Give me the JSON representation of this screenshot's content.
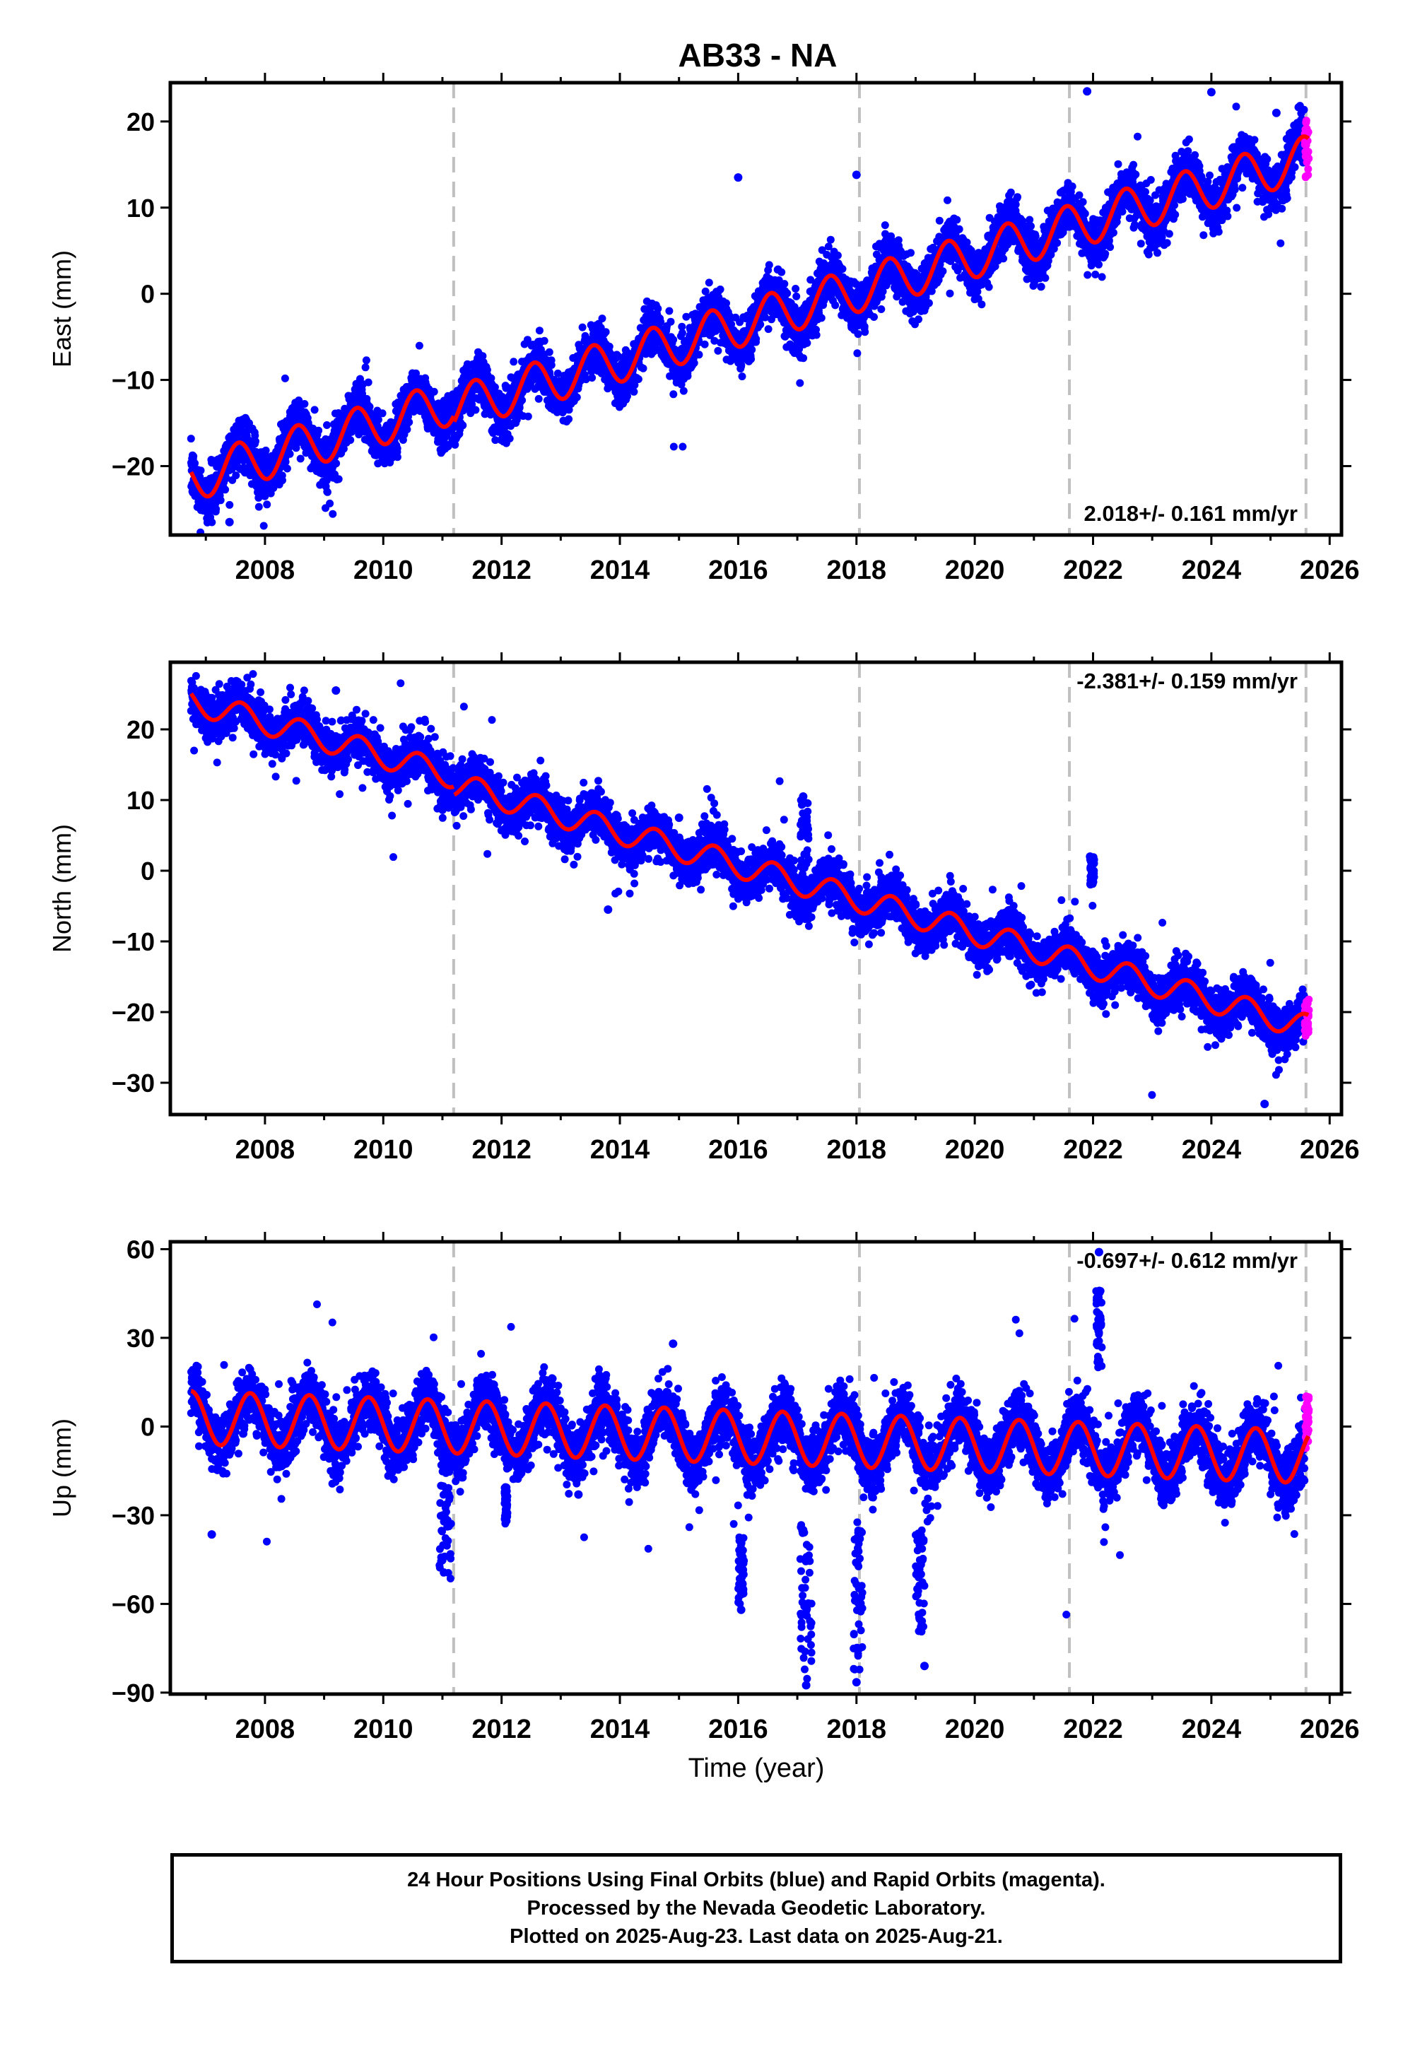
{
  "title": "AB33 - NA",
  "xlabel": "Time (year)",
  "caption": {
    "line1": "24 Hour Positions Using Final Orbits (blue) and Rapid Orbits (magenta).",
    "line2": "Processed by the Nevada Geodetic Laboratory.",
    "line3": "Plotted on 2025-Aug-23. Last data on 2025-Aug-21."
  },
  "colors": {
    "final_orbits": "#0000ff",
    "rapid_orbits": "#ff00ff",
    "model_fit": "#ff0000",
    "event_lines": "#c0c0c0"
  },
  "chart_data": [
    {
      "type": "scatter",
      "id": "east",
      "ylabel": "East (mm)",
      "ylim": [
        -28,
        24.5
      ],
      "yticks": [
        -20,
        -10,
        0,
        10,
        20
      ],
      "xlim": [
        2006.4,
        2026.2
      ],
      "xticks": [
        2008,
        2010,
        2012,
        2014,
        2016,
        2018,
        2020,
        2022,
        2024,
        2026
      ],
      "vertical_lines": [
        2011.19,
        2018.05,
        2021.6,
        2025.6
      ],
      "velocity_label": "2.018+/- 0.161 mm/yr",
      "velocity_label_position": "bottom-right",
      "fit": {
        "start": 2006.75,
        "end": 2025.64,
        "value_at_start": -21.5,
        "rate": 2.018,
        "annual_amplitude": 2.6,
        "annual_peak": 0.55,
        "noise": 1.4,
        "step_at": 2011.19,
        "step": -0.8
      },
      "rapid_range": [
        13.5,
        20.2
      ],
      "outliers": [
        [
          2021.9,
          23.5
        ],
        [
          2024.0,
          23.4
        ],
        [
          2025.1,
          21.0
        ],
        [
          2016.0,
          13.5
        ],
        [
          2018.0,
          13.8
        ],
        [
          2007.4,
          -26.5
        ]
      ],
      "anomalies": []
    },
    {
      "type": "scatter",
      "id": "north",
      "ylabel": "North (mm)",
      "ylim": [
        -34.5,
        29.5
      ],
      "yticks": [
        -30,
        -20,
        -10,
        0,
        10,
        20
      ],
      "xlim": [
        2006.4,
        2026.2
      ],
      "xticks": [
        2008,
        2010,
        2012,
        2014,
        2016,
        2018,
        2020,
        2022,
        2024,
        2026
      ],
      "vertical_lines": [
        2011.19,
        2018.05,
        2021.6,
        2025.6
      ],
      "velocity_label": "-2.381+/- 0.159 mm/yr",
      "velocity_label_position": "top-right",
      "fit": {
        "start": 2006.75,
        "end": 2025.64,
        "value_at_start": 24.0,
        "rate": -2.381,
        "annual_amplitude": 1.8,
        "annual_peak": 0.6,
        "noise": 1.6,
        "step_at": 2011.19,
        "step": -1.2
      },
      "rapid_range": [
        -23.5,
        -18.0
      ],
      "outliers": [
        [
          2017.1,
          10.5
        ],
        [
          2021.95,
          2.0
        ],
        [
          2024.9,
          -33.0
        ],
        [
          2015.0,
          7.5
        ],
        [
          2013.8,
          -5.5
        ],
        [
          2009.2,
          25.5
        ]
      ],
      "anomalies": [
        [
          2021.95,
          2022.02,
          -2,
          2
        ],
        [
          2017.05,
          2017.2,
          -6,
          10
        ]
      ]
    },
    {
      "type": "scatter",
      "id": "up",
      "ylabel": "Up (mm)",
      "ylim": [
        -90.5,
        62.5
      ],
      "yticks": [
        -90,
        -60,
        -30,
        0,
        30,
        60
      ],
      "xlim": [
        2006.4,
        2026.2
      ],
      "xticks": [
        2008,
        2010,
        2012,
        2014,
        2016,
        2018,
        2020,
        2022,
        2024,
        2026
      ],
      "vertical_lines": [
        2011.19,
        2018.05,
        2021.6,
        2025.6
      ],
      "velocity_label": "-0.697+/- 0.612 mm/yr",
      "velocity_label_position": "top-right",
      "fit": {
        "start": 2006.75,
        "end": 2025.64,
        "value_at_start": 3.0,
        "rate": -0.697,
        "annual_amplitude": 9.0,
        "annual_peak": 0.75,
        "noise": 5.0,
        "step_at": 2011.19,
        "step": 0
      },
      "rapid_range": [
        -8.0,
        12.0
      ],
      "outliers": [
        [
          2007.1,
          -36.5
        ],
        [
          2022.1,
          59.0
        ],
        [
          2019.15,
          -81.0
        ],
        [
          2017.15,
          -87.5
        ],
        [
          2018.0,
          -86.5
        ],
        [
          2016.05,
          -62.0
        ],
        [
          2013.3,
          -23.0
        ],
        [
          2014.9,
          28.0
        ]
      ],
      "anomalies": [
        [
          2010.95,
          2011.15,
          -52,
          -20
        ],
        [
          2016.0,
          2016.1,
          -60,
          -36
        ],
        [
          2017.05,
          2017.25,
          -87,
          -33
        ],
        [
          2017.95,
          2018.1,
          -85,
          -35
        ],
        [
          2019.0,
          2019.15,
          -70,
          -35
        ],
        [
          2022.05,
          2022.15,
          20,
          46
        ],
        [
          2012.05,
          2012.1,
          -33,
          -20
        ]
      ]
    }
  ]
}
